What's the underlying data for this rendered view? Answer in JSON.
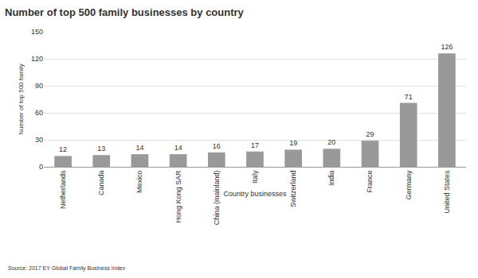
{
  "chart_data": {
    "type": "bar",
    "title": "Number of top 500 family businesses by country",
    "x_label": "Country businesses",
    "y_label": "Number of top 500 family",
    "annotations": [
      "Source: 2017 EY Global Family Business Index"
    ],
    "categories": [
      "Netherlands",
      "Canada",
      "Mexico",
      "Hong Kong SAR",
      "China (mainland)",
      "Italy",
      "Switzerland",
      "India",
      "France",
      "Germany",
      "United States"
    ],
    "values": [
      12,
      13,
      14,
      14,
      16,
      17,
      19,
      20,
      29,
      71,
      126
    ],
    "color": "#999999",
    "ylim": [
      0,
      150
    ],
    "yticks": [
      0,
      30,
      60,
      90,
      120,
      150
    ],
    "grid": true,
    "data_labels": true
  }
}
